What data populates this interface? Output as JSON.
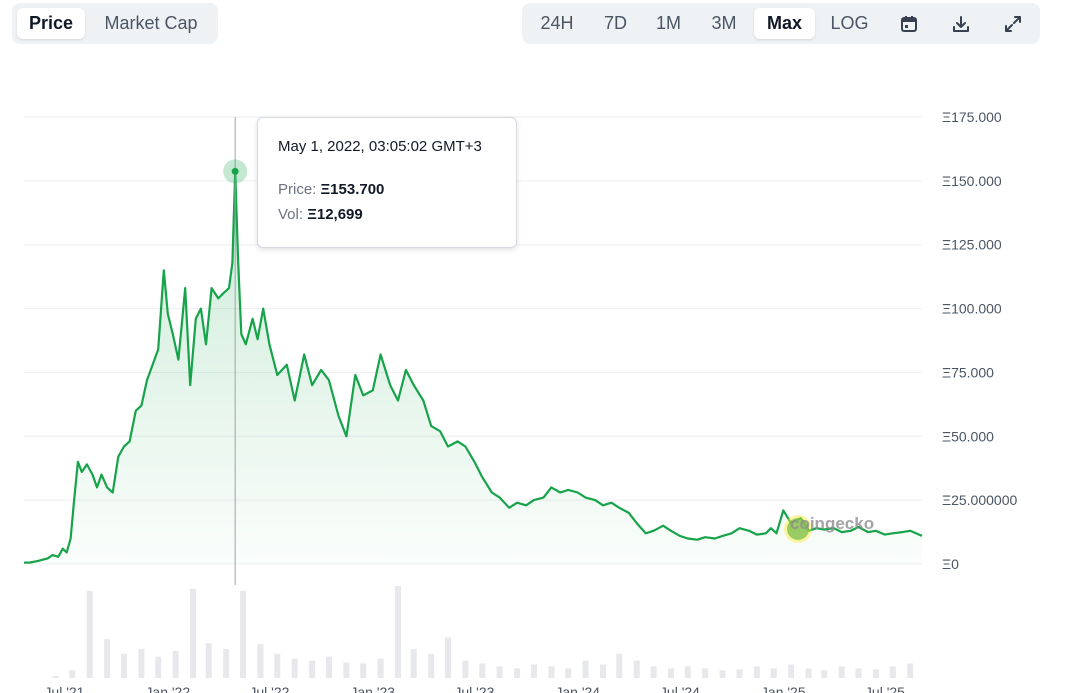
{
  "toolbar": {
    "metric_tabs": [
      {
        "label": "Price",
        "active": true
      },
      {
        "label": "Market Cap",
        "active": false
      }
    ],
    "range_tabs": [
      {
        "label": "24H",
        "active": false
      },
      {
        "label": "7D",
        "active": false
      },
      {
        "label": "1M",
        "active": false
      },
      {
        "label": "3M",
        "active": false
      },
      {
        "label": "Max",
        "active": true
      },
      {
        "label": "LOG",
        "active": false
      }
    ],
    "icons": [
      "calendar-icon",
      "download-icon",
      "expand-icon"
    ]
  },
  "tooltip": {
    "date": "May 1, 2022, 03:05:02 GMT+3",
    "price_label": "Price:",
    "price_value": "Ξ153.700",
    "vol_label": "Vol:",
    "vol_value": "Ξ12,699"
  },
  "watermark": "coingecko",
  "colors": {
    "line": "#16a34a",
    "volume": "#d1d5db",
    "active_tab_bg": "#ffffff",
    "toolbar_bg": "#eff2f5"
  },
  "chart_data": {
    "type": "area",
    "title": "",
    "xlabel": "",
    "ylabel": "",
    "y_tick_labels": [
      "Ξ0",
      "Ξ25.000000",
      "Ξ50.000",
      "Ξ75.000",
      "Ξ100.000",
      "Ξ125.000",
      "Ξ150.000",
      "Ξ175.000"
    ],
    "y_tick_values": [
      0,
      25,
      50,
      75,
      100,
      125,
      150,
      175
    ],
    "x_tick_labels": [
      "Jul '21",
      "Jan '22",
      "Jul '22",
      "Jan '23",
      "Jul '23",
      "Jan '24",
      "Jul '24",
      "Jan '25",
      "Jul '25"
    ],
    "x_tick_values": [
      "2021-07-01",
      "2022-01-01",
      "2022-07-01",
      "2023-01-01",
      "2023-07-01",
      "2024-01-01",
      "2024-07-01",
      "2025-01-01",
      "2025-07-01"
    ],
    "ylim": [
      0,
      175
    ],
    "xlim": [
      "2021-04-20",
      "2025-09-05"
    ],
    "grid": true,
    "series": [
      {
        "x": [
          "2021-04-20",
          "2021-05-01",
          "2021-05-15",
          "2021-06-01",
          "2021-06-10",
          "2021-06-20",
          "2021-06-28",
          "2021-07-05",
          "2021-07-12",
          "2021-07-18",
          "2021-07-25",
          "2021-08-01",
          "2021-08-10",
          "2021-08-20",
          "2021-08-28",
          "2021-09-05",
          "2021-09-15",
          "2021-09-25",
          "2021-10-05",
          "2021-10-15",
          "2021-10-25",
          "2021-11-05",
          "2021-11-15",
          "2021-11-25",
          "2021-12-05",
          "2021-12-15",
          "2021-12-25",
          "2022-01-01",
          "2022-01-10",
          "2022-01-20",
          "2022-02-01",
          "2022-02-10",
          "2022-02-20",
          "2022-03-01",
          "2022-03-10",
          "2022-03-20",
          "2022-04-01",
          "2022-04-10",
          "2022-04-20",
          "2022-04-26",
          "2022-05-01",
          "2022-05-06",
          "2022-05-12",
          "2022-05-20",
          "2022-06-01",
          "2022-06-10",
          "2022-06-20",
          "2022-07-01",
          "2022-07-15",
          "2022-08-01",
          "2022-08-15",
          "2022-09-01",
          "2022-09-15",
          "2022-10-01",
          "2022-10-15",
          "2022-11-01",
          "2022-11-15",
          "2022-12-01",
          "2022-12-15",
          "2023-01-01",
          "2023-01-15",
          "2023-02-01",
          "2023-02-15",
          "2023-03-01",
          "2023-03-15",
          "2023-04-01",
          "2023-04-15",
          "2023-05-01",
          "2023-05-15",
          "2023-06-01",
          "2023-06-15",
          "2023-07-01",
          "2023-07-15",
          "2023-08-01",
          "2023-08-15",
          "2023-09-01",
          "2023-09-15",
          "2023-10-01",
          "2023-10-15",
          "2023-11-01",
          "2023-11-15",
          "2023-12-01",
          "2023-12-15",
          "2024-01-01",
          "2024-01-15",
          "2024-02-01",
          "2024-02-15",
          "2024-03-01",
          "2024-03-15",
          "2024-04-01",
          "2024-04-15",
          "2024-05-01",
          "2024-05-15",
          "2024-06-01",
          "2024-06-15",
          "2024-07-01",
          "2024-07-15",
          "2024-08-01",
          "2024-08-15",
          "2024-09-01",
          "2024-09-15",
          "2024-10-01",
          "2024-10-15",
          "2024-11-01",
          "2024-11-15",
          "2024-12-01",
          "2024-12-10",
          "2024-12-20",
          "2025-01-01",
          "2025-01-15",
          "2025-02-01",
          "2025-02-15",
          "2025-03-01",
          "2025-03-15",
          "2025-04-01",
          "2025-04-15",
          "2025-05-01",
          "2025-05-15",
          "2025-06-01",
          "2025-06-15",
          "2025-07-01",
          "2025-07-15",
          "2025-08-01",
          "2025-08-15",
          "2025-09-05"
        ],
        "values": [
          0.5,
          0.6,
          1.2,
          2.2,
          3.5,
          2.8,
          6.0,
          4.5,
          10.0,
          24.5,
          40.0,
          36.0,
          39.0,
          35.0,
          30.0,
          35.0,
          30.0,
          28.0,
          42.0,
          46.0,
          48.0,
          60.0,
          62.0,
          72.0,
          78.0,
          84.0,
          115.0,
          98.0,
          90.0,
          80.0,
          108.0,
          70.0,
          96.0,
          100.0,
          86.0,
          108.0,
          104.0,
          106.0,
          108.0,
          118.0,
          153.7,
          120.0,
          90.0,
          86.0,
          96.0,
          88.0,
          100.0,
          86.0,
          74.0,
          78.0,
          64.0,
          82.0,
          70.0,
          76.0,
          72.0,
          58.0,
          50.0,
          74.0,
          66.0,
          68.0,
          82.0,
          70.0,
          64.0,
          76.0,
          70.0,
          64.0,
          54.0,
          52.0,
          46.0,
          48.0,
          46.0,
          40.0,
          34.0,
          28.0,
          26.0,
          22.0,
          24.0,
          23.0,
          25.0,
          26.0,
          30.0,
          28.0,
          29.0,
          28.0,
          26.0,
          25.0,
          23.0,
          24.0,
          22.0,
          20.0,
          16.0,
          12.0,
          13.0,
          15.0,
          13.0,
          11.0,
          10.0,
          9.5,
          10.5,
          10.0,
          11.0,
          12.0,
          14.0,
          13.0,
          11.5,
          12.0,
          14.0,
          12.0,
          21.0,
          16.0,
          18.0,
          13.0,
          14.0,
          13.5,
          14.0,
          12.5,
          13.0,
          14.5,
          12.5,
          13.0,
          11.5,
          12.0,
          12.5,
          13.0,
          11.0
        ]
      }
    ],
    "highlight": {
      "x": "2022-05-01",
      "y": 153.7
    },
    "volume": {
      "type": "bar",
      "x": [
        "2021-06",
        "2021-07",
        "2021-08",
        "2021-09",
        "2021-10",
        "2021-11",
        "2021-12",
        "2022-01",
        "2022-02",
        "2022-03",
        "2022-04",
        "2022-05",
        "2022-06",
        "2022-07",
        "2022-08",
        "2022-09",
        "2022-10",
        "2022-11",
        "2022-12",
        "2023-01",
        "2023-02",
        "2023-03",
        "2023-04",
        "2023-05",
        "2023-06",
        "2023-07",
        "2023-08",
        "2023-09",
        "2023-10",
        "2023-11",
        "2023-12",
        "2024-01",
        "2024-02",
        "2024-03",
        "2024-04",
        "2024-05",
        "2024-06",
        "2024-07",
        "2024-08",
        "2024-09",
        "2024-10",
        "2024-11",
        "2024-12",
        "2025-01",
        "2025-02",
        "2025-03",
        "2025-04",
        "2025-05",
        "2025-06",
        "2025-07",
        "2025-08"
      ],
      "values": [
        2,
        8,
        90,
        40,
        25,
        30,
        22,
        28,
        92,
        36,
        30,
        90,
        35,
        25,
        20,
        18,
        22,
        16,
        15,
        20,
        95,
        30,
        25,
        42,
        18,
        15,
        12,
        10,
        14,
        12,
        10,
        18,
        14,
        25,
        18,
        12,
        10,
        12,
        10,
        8,
        9,
        12,
        10,
        14,
        10,
        8,
        12,
        10,
        9,
        12,
        15
      ]
    }
  }
}
